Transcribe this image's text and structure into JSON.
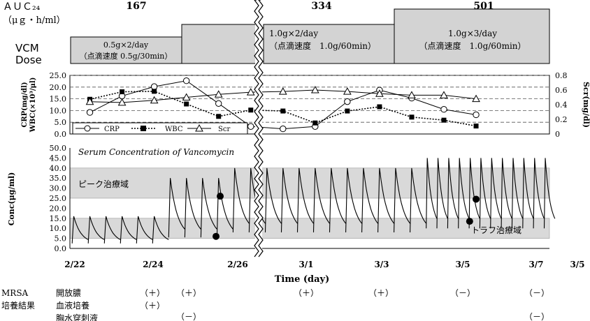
{
  "auc": {
    "label": "ＡＵＣ₂₄",
    "unit": "（μｇ・h/ml）",
    "values": [
      "167",
      "334",
      "501"
    ]
  },
  "dose": {
    "label1": "VCM",
    "label2": "Dose",
    "boxes": [
      {
        "line1": "0.5g×2/day",
        "line2": "（点滴速度 0.5g/30min）"
      },
      {
        "line1": "",
        "line2": ""
      },
      {
        "line1": "1.0g×2/day",
        "line2": "（点滴速度　1.0g/60min）"
      },
      {
        "line1": "1.0g×3/day",
        "line2": "（点滴速度　1.0g/60min）"
      }
    ]
  },
  "colors": {
    "band": "#d9d9d9",
    "box": "#d3d3d3"
  },
  "chart_data": [
    {
      "type": "line",
      "left_ylabel1": "CRP(mg/dl)",
      "left_ylabel2": "WBC(×10³/μl)",
      "right_ylabel": "Scr(mg/dl)",
      "left_ticks": [
        "0.0",
        "5.0",
        "10.0",
        "15.0",
        "20.0",
        "25.0"
      ],
      "right_ticks": [
        "0",
        "0.2",
        "0.4",
        "0.6",
        "0.8"
      ],
      "ylim_left": [
        0,
        25
      ],
      "ylim_right": [
        0,
        0.8
      ],
      "grid": "dashed",
      "series": [
        {
          "name": "CRP",
          "marker": "circle",
          "line": "solid",
          "x": [
            "2/22",
            "2/23",
            "2/24",
            "2/25",
            "2/26",
            "2/27",
            "2/28",
            "3/1",
            "3/2",
            "3/3",
            "3/4",
            "3/5",
            "3/6",
            "3/7"
          ],
          "values": [
            9.2,
            16.2,
            20.2,
            22.7,
            13,
            3.2,
            2.2,
            3.2,
            13.8,
            18.7,
            15.3,
            10.5,
            8.2,
            null
          ]
        },
        {
          "name": "WBC",
          "marker": "square",
          "line": "dotted",
          "x": [
            "2/22",
            "2/23",
            "2/24",
            "2/25",
            "2/26",
            "2/27",
            "2/28",
            "3/1",
            "3/2",
            "3/3",
            "3/4",
            "3/5",
            "3/6",
            "3/7"
          ],
          "values": [
            14.8,
            18,
            18.2,
            12.8,
            7.5,
            10.2,
            9.8,
            4.7,
            9.8,
            11.6,
            7.2,
            5.9,
            3.4,
            null
          ]
        },
        {
          "name": "Scr",
          "marker": "triangle",
          "line": "solid",
          "x": [
            "2/22",
            "2/23",
            "2/24",
            "2/25",
            "2/26",
            "2/27",
            "2/28",
            "3/1",
            "3/2",
            "3/3",
            "3/4",
            "3/5",
            "3/6",
            "3/7"
          ],
          "values": [
            0.44,
            0.43,
            0.46,
            0.5,
            0.54,
            0.57,
            0.58,
            0.6,
            0.58,
            0.55,
            0.53,
            0.53,
            0.48,
            null
          ]
        }
      ]
    },
    {
      "type": "line",
      "title": "Serum Concentration of Vancomycin",
      "ylabel": "Conc(μg/ml)",
      "xlabel": "Time (day)",
      "y_ticks": [
        "0.0",
        "5.0",
        "10.0",
        "15.0",
        "20.0",
        "25.0",
        "30.0",
        "35.0",
        "40.0",
        "45.0",
        "50.0"
      ],
      "ylim": [
        0,
        50
      ],
      "x_ticks": [
        "2/22",
        "2/24",
        "2/26",
        "3/1",
        "3/3",
        "3/5",
        "3/7",
        "3/5"
      ],
      "bands": [
        {
          "label": "ピーク治療域",
          "range": [
            25,
            40
          ]
        },
        {
          "label": "トラフ治療域",
          "range": [
            5,
            15
          ]
        }
      ],
      "regimens": [
        {
          "from_day": 0,
          "to_day": 3,
          "doses_per_day": 2,
          "peak": 16,
          "trough": 2.5
        },
        {
          "from_day": 3,
          "to_day": 5,
          "doses_per_day": 2,
          "peak": 35,
          "trough": 5.5
        },
        {
          "from_day": 5,
          "to_day": 11,
          "doses_per_day": 2,
          "peak": 40,
          "trough": 8
        },
        {
          "from_day": 11,
          "to_day": 15,
          "doses_per_day": 3,
          "peak": 45,
          "trough": 10
        }
      ],
      "measured": [
        {
          "day": 4.6,
          "conc": 26
        },
        {
          "day": 4.47,
          "conc": 6
        },
        {
          "day": 12.55,
          "conc": 24.5
        },
        {
          "day": 12.35,
          "conc": 13.5
        }
      ]
    }
  ],
  "mrsa": {
    "label1": "MRSA",
    "label2": "培養結果",
    "rows": [
      {
        "name": "開放膿",
        "marks": [
          "（＋）",
          "（＋）",
          "（＋）",
          "（＋）",
          "（－）",
          "（－）"
        ]
      },
      {
        "name": "血液培養",
        "marks": [
          "（＋）"
        ]
      },
      {
        "name": "胸水穿刺液",
        "marks": [
          "（－）",
          "（－）"
        ]
      }
    ]
  }
}
